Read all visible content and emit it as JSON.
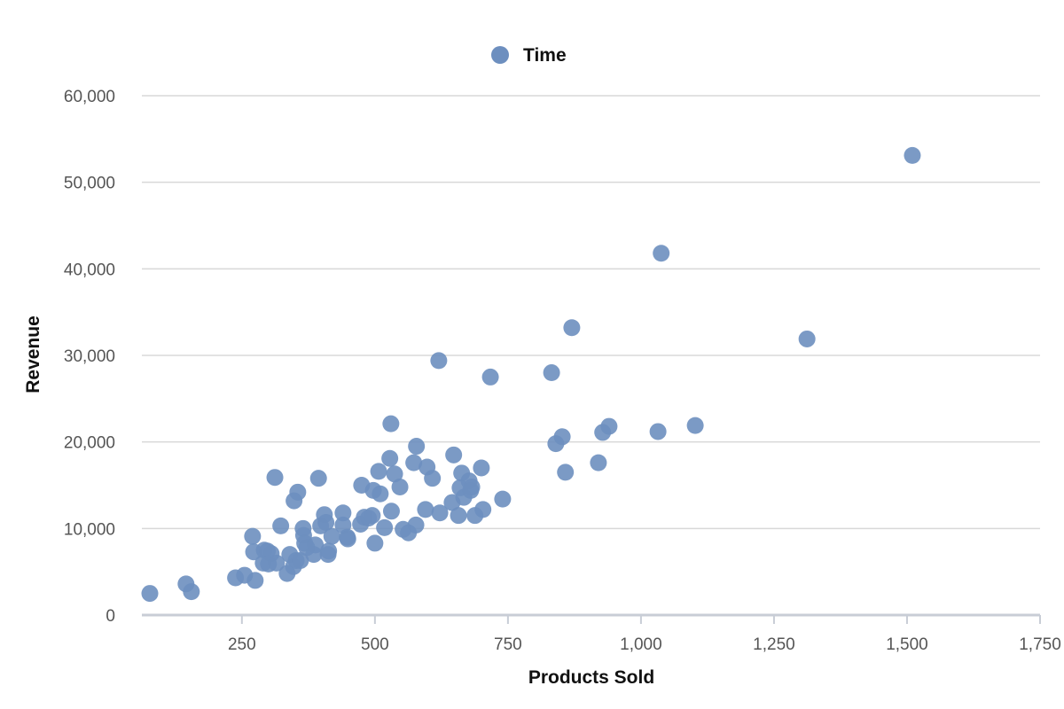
{
  "chart_data": {
    "type": "scatter",
    "title": "",
    "xlabel": "Products Sold",
    "ylabel": "Revenue",
    "xlim": [
      62,
      1750
    ],
    "ylim": [
      0,
      60000
    ],
    "x_ticks": [
      250,
      500,
      750,
      1000,
      1250,
      1500,
      1750
    ],
    "x_tick_labels": [
      "250",
      "500",
      "750",
      "1,000",
      "1,250",
      "1,500",
      "1,750"
    ],
    "y_ticks": [
      0,
      10000,
      20000,
      30000,
      40000,
      50000,
      60000
    ],
    "y_tick_labels": [
      "0",
      "10,000",
      "20,000",
      "30,000",
      "40,000",
      "50,000",
      "60,000"
    ],
    "grid": "horizontal",
    "legend_position": "top-center",
    "series": [
      {
        "name": "Time",
        "color": "#6d8fbf",
        "points": [
          [
            77,
            2500
          ],
          [
            145,
            3600
          ],
          [
            155,
            2700
          ],
          [
            238,
            4300
          ],
          [
            255,
            4600
          ],
          [
            275,
            4000
          ],
          [
            270,
            9100
          ],
          [
            272,
            7300
          ],
          [
            290,
            6000
          ],
          [
            292,
            7500
          ],
          [
            298,
            7400
          ],
          [
            305,
            7100
          ],
          [
            300,
            5900
          ],
          [
            315,
            6000
          ],
          [
            312,
            15900
          ],
          [
            323,
            10300
          ],
          [
            335,
            4800
          ],
          [
            340,
            7000
          ],
          [
            347,
            5600
          ],
          [
            352,
            6300
          ],
          [
            348,
            13200
          ],
          [
            355,
            14200
          ],
          [
            360,
            6300
          ],
          [
            365,
            10000
          ],
          [
            366,
            9200
          ],
          [
            368,
            8300
          ],
          [
            372,
            7800
          ],
          [
            385,
            7000
          ],
          [
            388,
            8100
          ],
          [
            394,
            15800
          ],
          [
            398,
            10300
          ],
          [
            405,
            11600
          ],
          [
            408,
            10700
          ],
          [
            412,
            7000
          ],
          [
            413,
            7400
          ],
          [
            419,
            9100
          ],
          [
            440,
            10400
          ],
          [
            440,
            11800
          ],
          [
            448,
            9000
          ],
          [
            449,
            8800
          ],
          [
            473,
            10500
          ],
          [
            475,
            15000
          ],
          [
            480,
            11300
          ],
          [
            488,
            11200
          ],
          [
            495,
            11500
          ],
          [
            497,
            14400
          ],
          [
            500,
            8300
          ],
          [
            507,
            16600
          ],
          [
            510,
            14000
          ],
          [
            518,
            10100
          ],
          [
            528,
            18100
          ],
          [
            530,
            22100
          ],
          [
            531,
            12000
          ],
          [
            537,
            16300
          ],
          [
            547,
            14800
          ],
          [
            553,
            9900
          ],
          [
            563,
            9500
          ],
          [
            573,
            17600
          ],
          [
            577,
            10400
          ],
          [
            578,
            19500
          ],
          [
            595,
            12200
          ],
          [
            598,
            17100
          ],
          [
            608,
            15800
          ],
          [
            620,
            29400
          ],
          [
            622,
            11800
          ],
          [
            645,
            13000
          ],
          [
            648,
            18500
          ],
          [
            657,
            11500
          ],
          [
            660,
            14700
          ],
          [
            663,
            16400
          ],
          [
            667,
            13600
          ],
          [
            677,
            15500
          ],
          [
            680,
            14400
          ],
          [
            682,
            14800
          ],
          [
            688,
            11500
          ],
          [
            700,
            17000
          ],
          [
            703,
            12200
          ],
          [
            717,
            27500
          ],
          [
            740,
            13400
          ],
          [
            832,
            28000
          ],
          [
            840,
            19800
          ],
          [
            852,
            20600
          ],
          [
            858,
            16500
          ],
          [
            870,
            33200
          ],
          [
            920,
            17600
          ],
          [
            928,
            21100
          ],
          [
            940,
            21800
          ],
          [
            1032,
            21200
          ],
          [
            1038,
            41800
          ],
          [
            1102,
            21900
          ],
          [
            1312,
            31900
          ],
          [
            1510,
            53100
          ]
        ]
      }
    ]
  }
}
